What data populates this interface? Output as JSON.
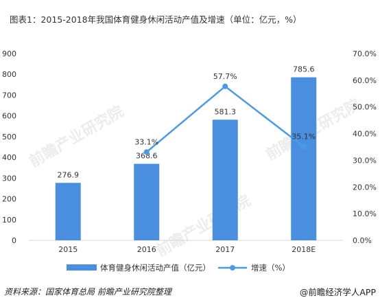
{
  "title": "图表1：2015-2018年我国体育健身休闲活动产值及增速（单位：亿元，%）",
  "footer": {
    "source": "资料来源：国家体育总局 前瞻产业研究院整理",
    "brand": "@前瞻经济学人APP"
  },
  "watermark": "前瞻产业研究院",
  "colors": {
    "bar": "#4a8ee0",
    "line": "#4a9be6",
    "grid": "#d9d9d9"
  },
  "chart_data": {
    "type": "bar",
    "categories": [
      "2015",
      "2016",
      "2017",
      "2018E"
    ],
    "series": [
      {
        "name": "体育健身休闲活动产值（亿元）",
        "type": "bar",
        "axis": "left",
        "values": [
          276.9,
          368.6,
          581.3,
          785.6
        ],
        "labels": [
          "276.9",
          "368.6",
          "581.3",
          "785.6"
        ]
      },
      {
        "name": "增速（%）",
        "type": "line",
        "axis": "right",
        "x": [
          "2016",
          "2017",
          "2018E"
        ],
        "values": [
          33.1,
          57.7,
          35.1
        ],
        "labels": [
          "33.1%",
          "57.7%",
          "35.1%"
        ]
      }
    ],
    "left_axis": {
      "min": 0,
      "max": 900,
      "step": 100,
      "ticks": [
        "0",
        "100",
        "200",
        "300",
        "400",
        "500",
        "600",
        "700",
        "800",
        "900"
      ]
    },
    "right_axis": {
      "min": 0,
      "max": 70,
      "step": 10,
      "ticks": [
        "0.0%",
        "10.0%",
        "20.0%",
        "30.0%",
        "40.0%",
        "50.0%",
        "60.0%",
        "70.0%"
      ]
    },
    "grid": false,
    "legend_position": "bottom"
  }
}
